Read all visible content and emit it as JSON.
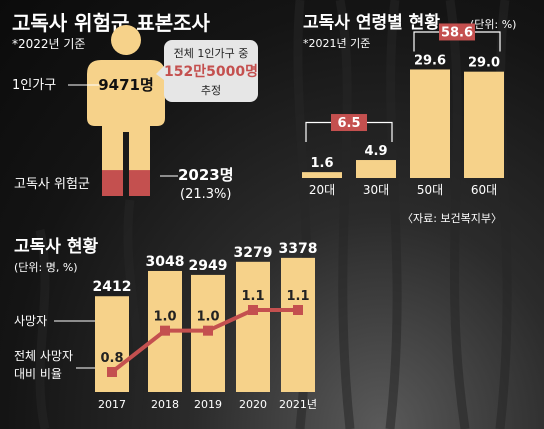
{
  "colors": {
    "bar": "#f6d28a",
    "accent": "#c4504f",
    "body": "#f6d28a",
    "text_dark": "#111111",
    "text_light": "#ffffff",
    "callout_bg": "#e6e6e6"
  },
  "panel1": {
    "title": "고독사 위험군 표본조사",
    "note": "*2022년 기준",
    "label_single": "1인가구",
    "value_single": "9471명",
    "label_risk": "고독사 위험군",
    "value_risk": "2023명",
    "value_risk_pct": "(21.3%)",
    "risk_share": 0.213,
    "callout": {
      "line1": "전체 1인가구 중",
      "line2": "152만5000명",
      "line3": "추정"
    }
  },
  "chart_data": [
    {
      "type": "bar",
      "title": "고독사 연령별 현황",
      "unit": "(단위: %)",
      "note": "*2021년 기준",
      "source": "〈자료: 보건복지부〉",
      "categories": [
        "20대",
        "30대",
        "50대",
        "60대"
      ],
      "values": [
        1.6,
        4.9,
        29.6,
        29.0
      ],
      "value_labels": [
        "1.6",
        "4.9",
        "29.6",
        "29.0"
      ],
      "groups": [
        {
          "label": "6.5",
          "members": [
            0,
            1
          ]
        },
        {
          "label": "58.6",
          "members": [
            2,
            3
          ]
        }
      ],
      "ylim": [
        0,
        30
      ]
    },
    {
      "type": "bar",
      "title": "고독사 현황",
      "unit": "(단위: 명, %)",
      "categories": [
        "2017",
        "2018",
        "2019",
        "2020",
        "2021년"
      ],
      "series": [
        {
          "name": "사망자",
          "type": "bar",
          "values": [
            2412,
            3048,
            2949,
            3279,
            3378
          ],
          "value_labels": [
            "2412",
            "3048",
            "2949",
            "3279",
            "3378"
          ]
        },
        {
          "name": "전체 사망자 대비 비율",
          "type": "line",
          "values": [
            0.8,
            1.0,
            1.0,
            1.1,
            1.1
          ],
          "value_labels": [
            "0.8",
            "1.0",
            "1.0",
            "1.1",
            "1.1"
          ]
        }
      ],
      "legend_labels": [
        "사망자",
        "전체 사망자",
        "대비 비율"
      ],
      "bar_ylim": [
        0,
        3600
      ],
      "line_ylim": [
        0.8,
        1.1
      ]
    }
  ]
}
